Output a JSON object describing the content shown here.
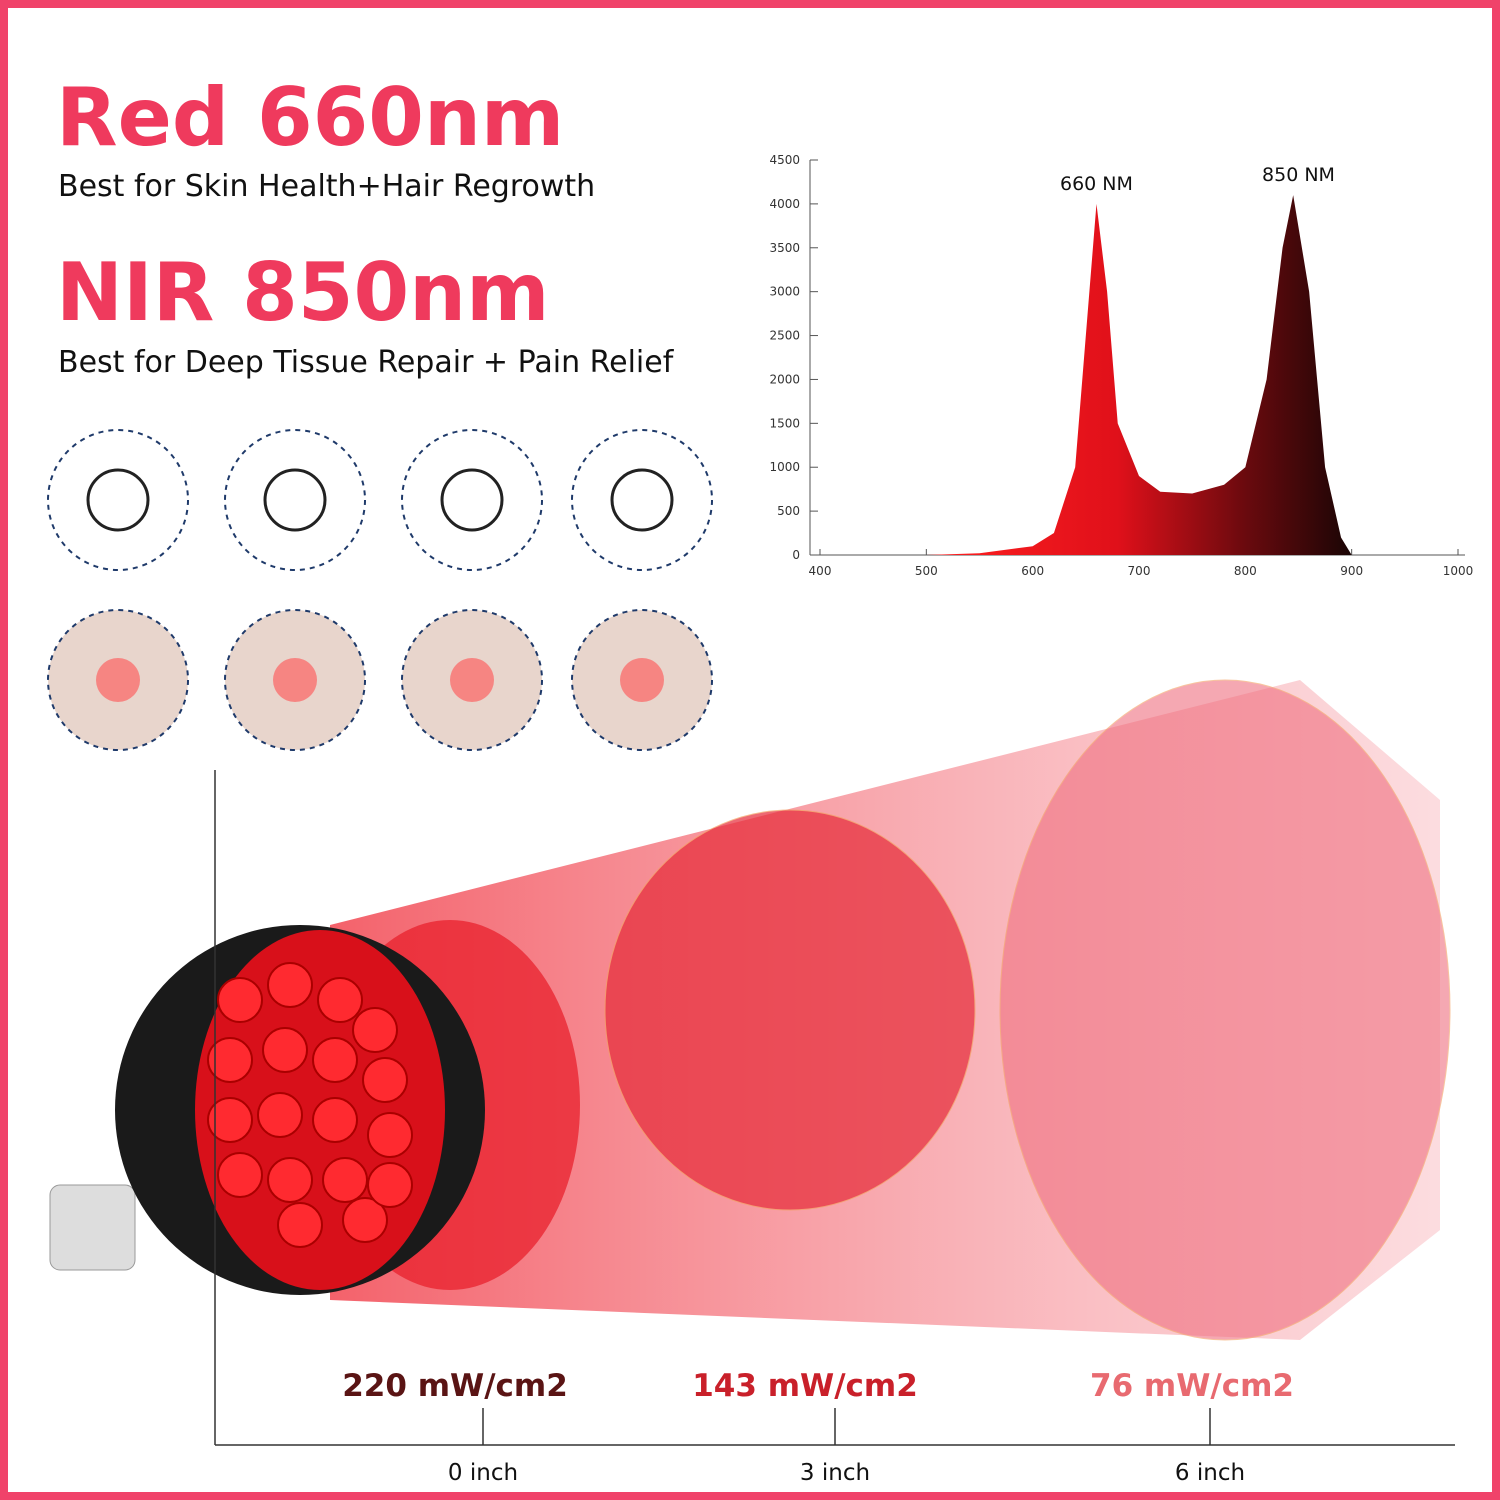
{
  "header": {
    "red_title": "Red 660nm",
    "red_subtitle": "Best for Skin Health+Hair Regrowth",
    "nir_title": "NIR 850nm",
    "nir_subtitle": "Best for Deep Tissue Repair + Pain Relief"
  },
  "chart_data": {
    "type": "area",
    "x": [
      500,
      550,
      600,
      620,
      640,
      650,
      660,
      670,
      680,
      700,
      720,
      750,
      780,
      800,
      820,
      835,
      845,
      860,
      875,
      890,
      900
    ],
    "values": [
      0,
      20,
      100,
      250,
      1000,
      2500,
      4000,
      3000,
      1500,
      900,
      720,
      700,
      800,
      1000,
      2000,
      3500,
      4100,
      3000,
      1000,
      200,
      0
    ],
    "xlim": [
      400,
      1000
    ],
    "ylim": [
      0,
      4500
    ],
    "xticks": [
      400,
      500,
      600,
      700,
      800,
      900,
      1000
    ],
    "yticks": [
      0,
      500,
      1000,
      1500,
      2000,
      2500,
      3000,
      3500,
      4000,
      4500
    ],
    "annotations": [
      {
        "text": "660 NM",
        "x": 660,
        "y": 4000
      },
      {
        "text": "850 NM",
        "x": 850,
        "y": 4100
      }
    ]
  },
  "irradiance": {
    "levels": [
      "220 mW/cm2",
      "143 mW/cm2",
      "76 mW/cm2"
    ],
    "distances": [
      "0 inch",
      "3 inch",
      "6 inch"
    ]
  }
}
